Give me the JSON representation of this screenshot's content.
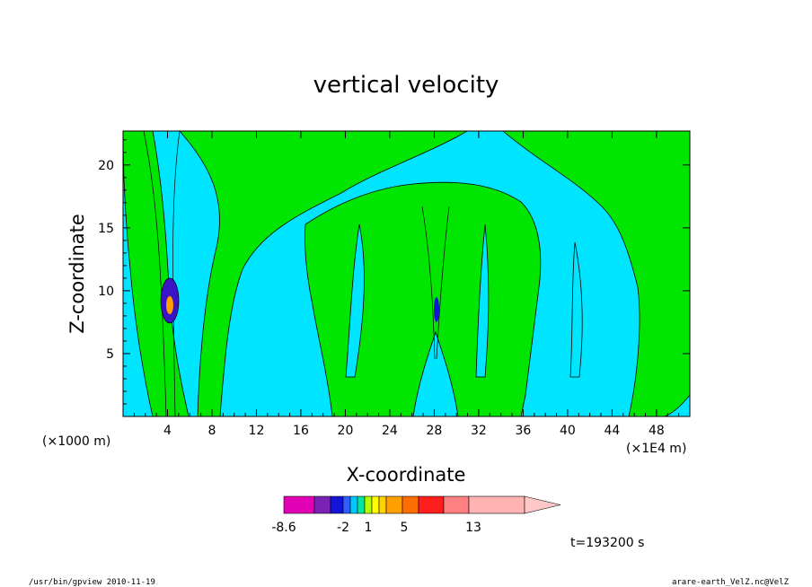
{
  "chart_data": {
    "type": "heatmap",
    "title": "vertical velocity",
    "xlabel": "X-coordinate",
    "ylabel": "Z-coordinate",
    "x_unit_left": "(×1000 m)",
    "x_unit_right": "(×1E4 m)",
    "x_ticks": [
      4,
      8,
      12,
      16,
      20,
      24,
      28,
      32,
      36,
      40,
      44,
      48
    ],
    "y_ticks": [
      5,
      10,
      15,
      20
    ],
    "xlim": [
      0,
      51
    ],
    "ylim": [
      0,
      22.7
    ],
    "colorbar": {
      "colors": [
        "#e100b4",
        "#7a22b4",
        "#1414d8",
        "#2d5fff",
        "#00c8ff",
        "#00e6a0",
        "#b4ff00",
        "#ffff00",
        "#ffd200",
        "#ffa000",
        "#ff6e00",
        "#ff1e1e",
        "#ff8080",
        "#ffb4b4",
        "#ffc8c8"
      ],
      "tick_labels": [
        "-8.6",
        "-2",
        "1",
        "5",
        "13"
      ]
    },
    "field_colors": {
      "negative_small": "#00e5ff",
      "positive_small": "#00e600",
      "strong_positive": "#ffa000",
      "strong_negative": "#3c14c8"
    },
    "time_label": "t=193200 s"
  },
  "footer": {
    "left": "/usr/bin/gpview  2010-11-19",
    "right": "arare-earth_VelZ.nc@VelZ"
  }
}
